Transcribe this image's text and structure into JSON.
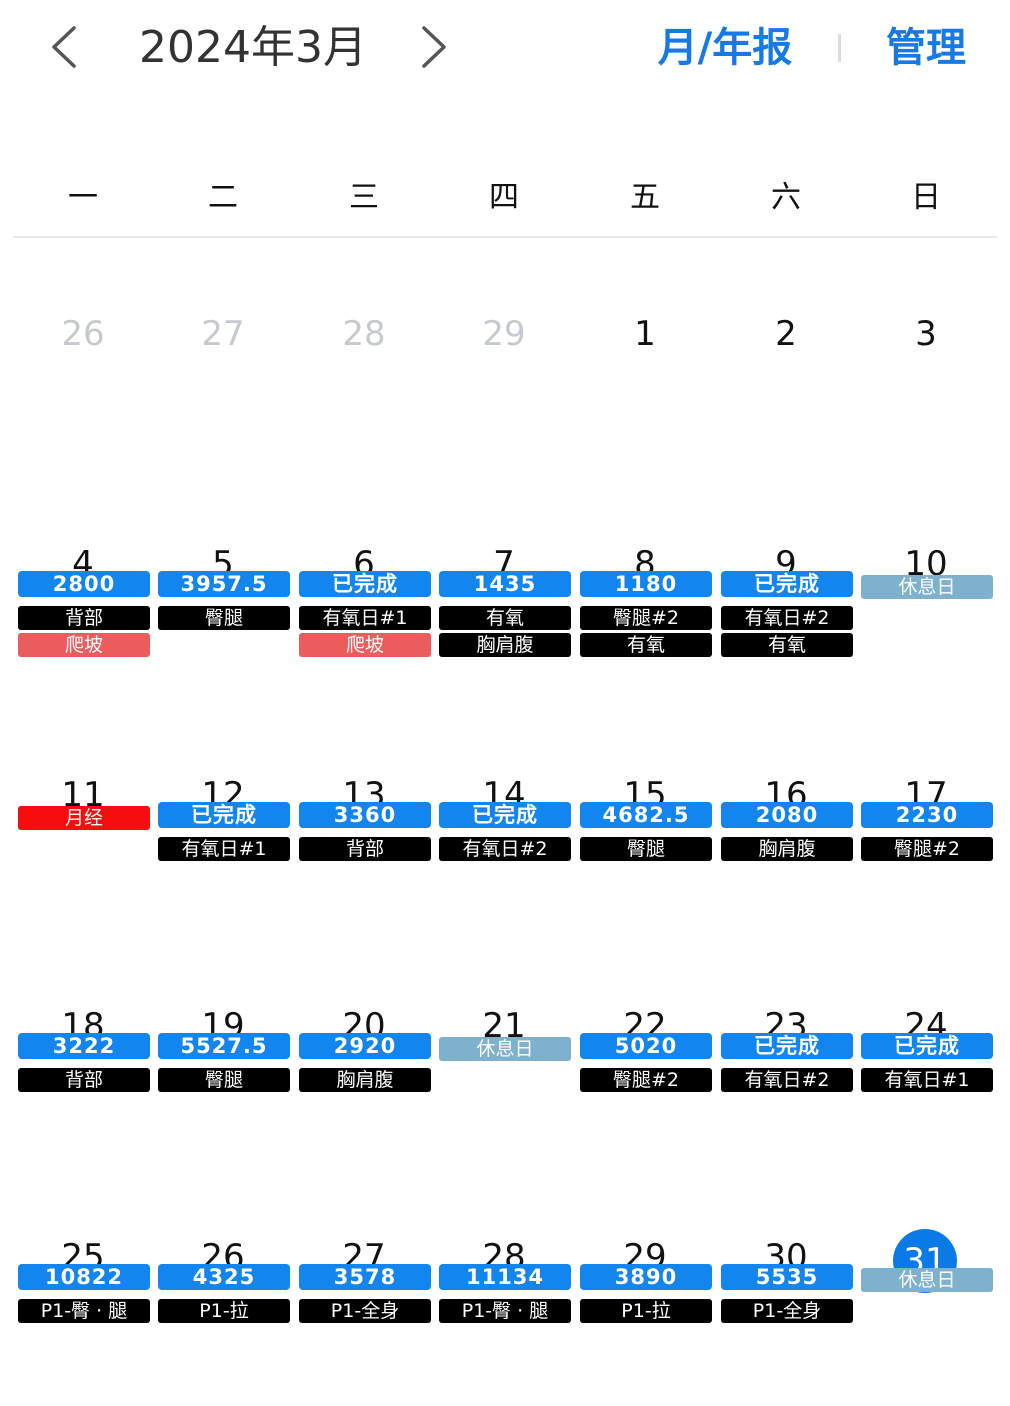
{
  "header": {
    "title": "2024年3月",
    "prev_icon": "chevron-left-icon",
    "next_icon": "chevron-right-icon",
    "report_label": "月/年报",
    "manage_label": "管理",
    "accent_color": "#1679e6"
  },
  "weekdays": [
    "一",
    "二",
    "三",
    "四",
    "五",
    "六",
    "日"
  ],
  "tag_colors": {
    "vol": "#1385ef",
    "plan": "#000000",
    "cardio": "#ea5d5c",
    "rest": "#7eb1ce",
    "period": "#f70d0d"
  },
  "weeks": [
    [
      {
        "day": "26",
        "other": true,
        "tags": []
      },
      {
        "day": "27",
        "other": true,
        "tags": []
      },
      {
        "day": "28",
        "other": true,
        "tags": []
      },
      {
        "day": "29",
        "other": true,
        "tags": []
      },
      {
        "day": "1",
        "tags": []
      },
      {
        "day": "2",
        "tags": []
      },
      {
        "day": "3",
        "tags": []
      }
    ],
    [
      {
        "day": "4",
        "tags": [
          {
            "type": "vol",
            "text": "2800"
          },
          {
            "type": "plan",
            "text": "背部"
          },
          {
            "type": "cardio",
            "text": "爬坡"
          }
        ]
      },
      {
        "day": "5",
        "tags": [
          {
            "type": "vol",
            "text": "3957.5"
          },
          {
            "type": "plan",
            "text": "臀腿"
          }
        ]
      },
      {
        "day": "6",
        "tags": [
          {
            "type": "vol",
            "text": "已完成"
          },
          {
            "type": "plan",
            "text": "有氧日#1"
          },
          {
            "type": "cardio",
            "text": "爬坡"
          }
        ]
      },
      {
        "day": "7",
        "tags": [
          {
            "type": "vol",
            "text": "1435"
          },
          {
            "type": "plan",
            "text": "有氧"
          },
          {
            "type": "plan",
            "text": "胸肩腹"
          }
        ]
      },
      {
        "day": "8",
        "tags": [
          {
            "type": "vol",
            "text": "1180"
          },
          {
            "type": "plan",
            "text": "臀腿#2"
          },
          {
            "type": "plan",
            "text": "有氧"
          }
        ]
      },
      {
        "day": "9",
        "tags": [
          {
            "type": "vol",
            "text": "已完成"
          },
          {
            "type": "plan",
            "text": "有氧日#2"
          },
          {
            "type": "plan",
            "text": "有氧"
          }
        ]
      },
      {
        "day": "10",
        "tags": [
          {
            "type": "rest",
            "text": "休息日"
          }
        ]
      }
    ],
    [
      {
        "day": "11",
        "tags": [
          {
            "type": "period",
            "text": "月经"
          }
        ]
      },
      {
        "day": "12",
        "tags": [
          {
            "type": "vol",
            "text": "已完成"
          },
          {
            "type": "plan",
            "text": "有氧日#1"
          }
        ]
      },
      {
        "day": "13",
        "tags": [
          {
            "type": "vol",
            "text": "3360"
          },
          {
            "type": "plan",
            "text": "背部"
          }
        ]
      },
      {
        "day": "14",
        "tags": [
          {
            "type": "vol",
            "text": "已完成"
          },
          {
            "type": "plan",
            "text": "有氧日#2"
          }
        ]
      },
      {
        "day": "15",
        "tags": [
          {
            "type": "vol",
            "text": "4682.5"
          },
          {
            "type": "plan",
            "text": "臀腿"
          }
        ]
      },
      {
        "day": "16",
        "tags": [
          {
            "type": "vol",
            "text": "2080"
          },
          {
            "type": "plan",
            "text": "胸肩腹"
          }
        ]
      },
      {
        "day": "17",
        "tags": [
          {
            "type": "vol",
            "text": "2230"
          },
          {
            "type": "plan",
            "text": "臀腿#2"
          }
        ]
      }
    ],
    [
      {
        "day": "18",
        "tags": [
          {
            "type": "vol",
            "text": "3222"
          },
          {
            "type": "plan",
            "text": "背部"
          }
        ]
      },
      {
        "day": "19",
        "tags": [
          {
            "type": "vol",
            "text": "5527.5"
          },
          {
            "type": "plan",
            "text": "臀腿"
          }
        ]
      },
      {
        "day": "20",
        "tags": [
          {
            "type": "vol",
            "text": "2920"
          },
          {
            "type": "plan",
            "text": "胸肩腹"
          }
        ]
      },
      {
        "day": "21",
        "tags": [
          {
            "type": "rest",
            "text": "休息日"
          }
        ]
      },
      {
        "day": "22",
        "tags": [
          {
            "type": "vol",
            "text": "5020"
          },
          {
            "type": "plan",
            "text": "臀腿#2"
          }
        ]
      },
      {
        "day": "23",
        "tags": [
          {
            "type": "vol",
            "text": "已完成"
          },
          {
            "type": "plan",
            "text": "有氧日#2"
          }
        ]
      },
      {
        "day": "24",
        "tags": [
          {
            "type": "vol",
            "text": "已完成"
          },
          {
            "type": "plan",
            "text": "有氧日#1"
          }
        ]
      }
    ],
    [
      {
        "day": "25",
        "tags": [
          {
            "type": "vol",
            "text": "10822"
          },
          {
            "type": "plan",
            "text": "P1-臀 · 腿"
          }
        ]
      },
      {
        "day": "26",
        "tags": [
          {
            "type": "vol",
            "text": "4325"
          },
          {
            "type": "plan",
            "text": "P1-拉"
          }
        ]
      },
      {
        "day": "27",
        "tags": [
          {
            "type": "vol",
            "text": "3578"
          },
          {
            "type": "plan",
            "text": "P1-全身"
          }
        ]
      },
      {
        "day": "28",
        "tags": [
          {
            "type": "vol",
            "text": "11134"
          },
          {
            "type": "plan",
            "text": "P1-臀 · 腿"
          }
        ]
      },
      {
        "day": "29",
        "tags": [
          {
            "type": "vol",
            "text": "3890"
          },
          {
            "type": "plan",
            "text": "P1-拉"
          }
        ]
      },
      {
        "day": "30",
        "tags": [
          {
            "type": "vol",
            "text": "5535"
          },
          {
            "type": "plan",
            "text": "P1-全身"
          }
        ]
      },
      {
        "day": "31",
        "today": true,
        "tags": [
          {
            "type": "rest",
            "text": "休息日"
          }
        ]
      }
    ]
  ]
}
